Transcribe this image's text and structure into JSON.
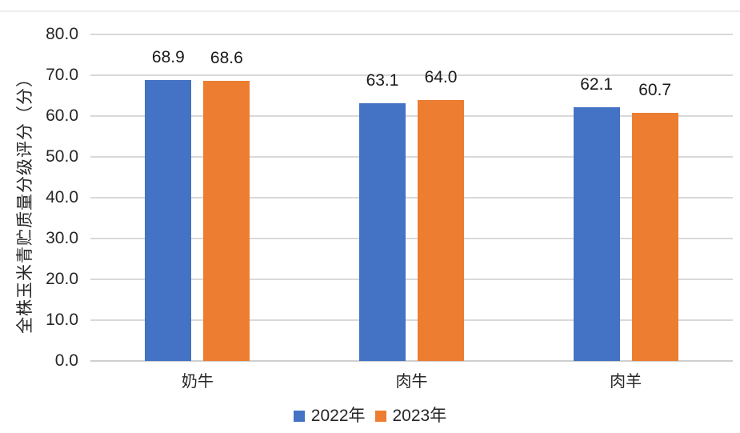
{
  "page": {
    "background": "#FFFFFF",
    "top_border_color": "#ECECEC"
  },
  "chart_data": {
    "type": "bar",
    "title": "",
    "categories": [
      "奶牛",
      "肉牛",
      "肉羊"
    ],
    "series": [
      {
        "name": "2022年",
        "color": "#4472C4",
        "values": [
          68.9,
          63.1,
          62.1
        ],
        "labels": [
          "68.9",
          "63.1",
          "62.1"
        ]
      },
      {
        "name": "2023年",
        "color": "#ED7D31",
        "values": [
          68.6,
          64.0,
          60.7
        ],
        "labels": [
          "68.6",
          "64.0",
          "60.7"
        ]
      }
    ],
    "xlabel": "",
    "ylabel": "全株玉米青贮质量分级评分（分）",
    "ylim": [
      0,
      80
    ],
    "ytick_step": 10,
    "ytick_labels": [
      "0.0",
      "10.0",
      "20.0",
      "30.0",
      "40.0",
      "50.0",
      "60.0",
      "70.0",
      "80.0"
    ],
    "grid": "horizontal-only",
    "legend_position": "bottom-center",
    "text_color": "#262626",
    "gridline_color": "#D9D9D9",
    "axisline_color": "#CFCFCF"
  }
}
